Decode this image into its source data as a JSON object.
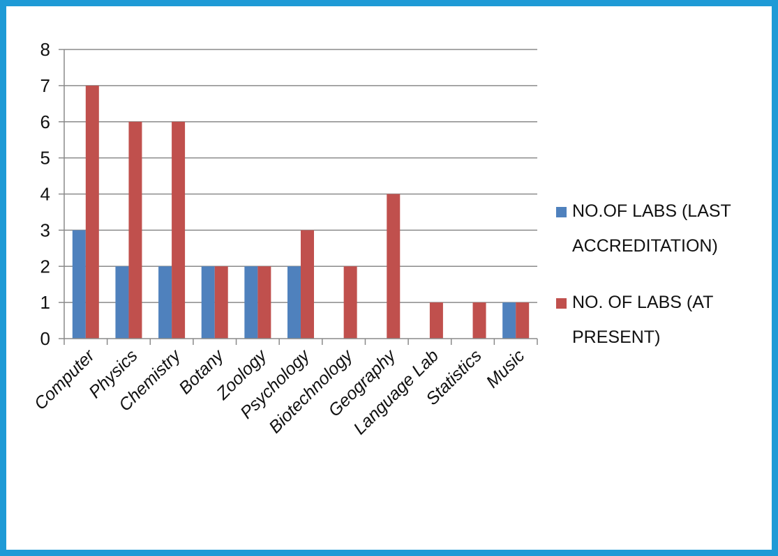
{
  "chart_data": {
    "type": "bar",
    "categories": [
      "Computer",
      "Physics",
      "Chemistry",
      "Botany",
      "Zoology",
      "Psychology",
      "Biotechnology",
      "Geography",
      "Language Lab",
      "Statistics",
      "Music"
    ],
    "series": [
      {
        "name": "NO.OF LABS (LAST ACCREDITATION)",
        "legend_lines": [
          "NO.OF LABS (LAST",
          "ACCREDITATION)"
        ],
        "color": "#4f81bd",
        "values": [
          3,
          2,
          2,
          2,
          2,
          2,
          0,
          0,
          0,
          0,
          1
        ]
      },
      {
        "name": "NO. OF LABS (AT PRESENT)",
        "legend_lines": [
          "NO. OF LABS (AT",
          "PRESENT)"
        ],
        "color": "#c0504d",
        "values": [
          7,
          6,
          6,
          2,
          2,
          3,
          2,
          4,
          1,
          1,
          1
        ]
      }
    ],
    "yticks": [
      0,
      1,
      2,
      3,
      4,
      5,
      6,
      7,
      8
    ],
    "ylim": [
      0,
      8
    ],
    "grid": true,
    "legend_position": "right",
    "border_color": "#1e9ad6"
  }
}
